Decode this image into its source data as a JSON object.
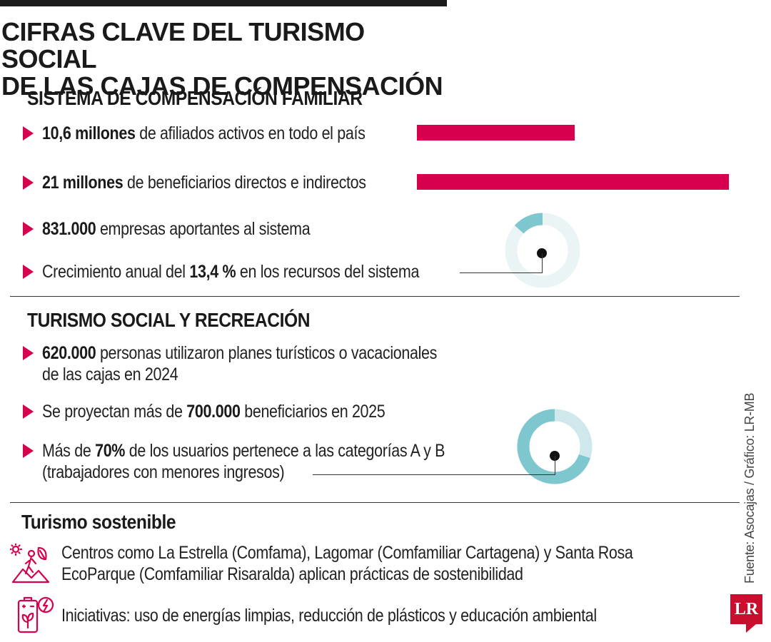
{
  "title": {
    "line1": "CIFRAS CLAVE DEL TURISMO SOCIAL",
    "line2": "DE LAS CAJAS DE COMPENSACIÓN"
  },
  "colors": {
    "accent": "#d6004f",
    "donut_light": "#cfe8ec",
    "donut_dark": "#7fc7cf",
    "donut_bg": "#eaf4f5"
  },
  "section1": {
    "heading": "SISTEMA DE COMPENSACIÓN FAMILIAR",
    "items": [
      {
        "bold": "10,6 millones",
        "text": " de afiliados activos en todo el país",
        "value": 10.6
      },
      {
        "bold": "21 millones",
        "text": " de beneficiarios directos e indirectos",
        "value": 21
      },
      {
        "bold": "831.000",
        "text": " empresas aportantes al sistema"
      },
      {
        "pre": "Crecimiento anual del ",
        "bold": "13,4 %",
        "text": " en los recursos del sistema",
        "percent": 13.4
      }
    ]
  },
  "section2": {
    "heading": "TURISMO SOCIAL Y RECREACIÓN",
    "items": [
      {
        "bold": "620.000",
        "text": " personas utilizaron planes turísticos o vacacionales",
        "line2": "de las cajas en 2024"
      },
      {
        "pre": "Se proyectan más de ",
        "bold": "700.000",
        "text": " beneficiarios en 2025"
      },
      {
        "pre": "Más de ",
        "bold": "70%",
        "text": " de los usuarios pertenece a las categorías A y B",
        "line2": "(trabajadores con menores ingresos)",
        "percent": 70
      }
    ]
  },
  "section3": {
    "heading": "Turismo sostenible",
    "items": [
      {
        "icon": "eco-hiking-icon",
        "line1": "Centros como La Estrella (Comfama), Lagomar (Comfamiliar Cartagena) y Santa Rosa",
        "line2": "EcoParque (Comfamiliar Risaralda) aplican prácticas de sostenibilidad"
      },
      {
        "icon": "clean-energy-icon",
        "line1": "Iniciativas: uso de energías limpias, reducción de plásticos y educación ambiental"
      }
    ]
  },
  "credit": "Fuente: Asocajas / Gráfico: LR-MB",
  "logo": "LR"
}
